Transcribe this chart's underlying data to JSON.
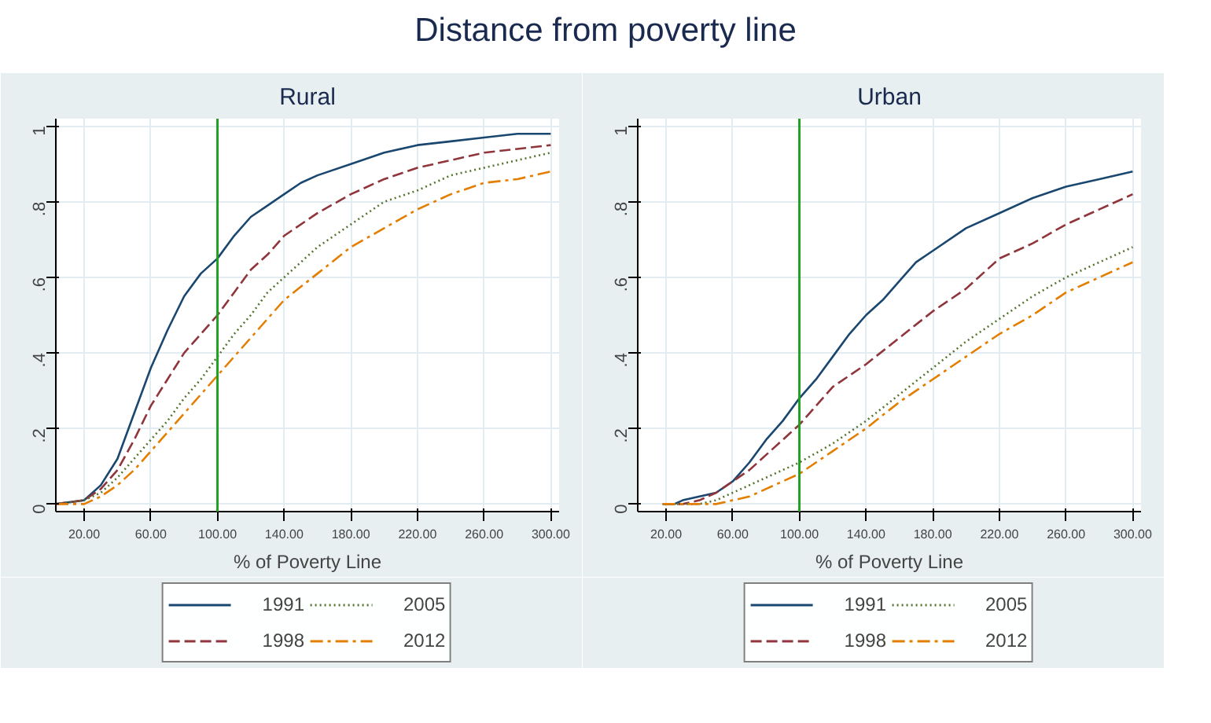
{
  "chart_data": [
    {
      "type": "line",
      "title": "Rural",
      "annotations": [
        "Distance from poverty line"
      ],
      "xlabel": "% of Poverty Line",
      "xlim": [
        3,
        305
      ],
      "ylim": [
        -0.02,
        1.02
      ],
      "xticks": [
        {
          "value": 20,
          "label": "20.00"
        },
        {
          "value": 60,
          "label": "60.00"
        },
        {
          "value": 100,
          "label": "100.00"
        },
        {
          "value": 140,
          "label": "140.00"
        },
        {
          "value": 180,
          "label": "180.00"
        },
        {
          "value": 220,
          "label": "220.00"
        },
        {
          "value": 260,
          "label": "260.00"
        },
        {
          "value": 300,
          "label": "300.00"
        }
      ],
      "yticks": [
        0,
        {
          "value": 0.2,
          "label": ".2"
        },
        {
          "value": 0.4,
          "label": ".4"
        },
        {
          "value": 0.6,
          "label": ".6"
        },
        {
          "value": 0.8,
          "label": ".8"
        },
        1
      ],
      "grid": true,
      "legend": "bottom",
      "ref_lines": [
        {
          "axis": "x",
          "value": 100,
          "color": "#22a022"
        }
      ],
      "series": [
        {
          "name": "1991",
          "color": "#1a476f",
          "line_style": "solid",
          "x": [
            3,
            20,
            30,
            40,
            50,
            60,
            70,
            80,
            90,
            100,
            110,
            120,
            130,
            140,
            150,
            160,
            180,
            200,
            220,
            240,
            260,
            280,
            300
          ],
          "values": [
            0,
            0.01,
            0.05,
            0.12,
            0.24,
            0.36,
            0.46,
            0.55,
            0.61,
            0.65,
            0.71,
            0.76,
            0.79,
            0.82,
            0.85,
            0.87,
            0.9,
            0.93,
            0.95,
            0.96,
            0.97,
            0.98,
            0.98
          ]
        },
        {
          "name": "1998",
          "color": "#90353b",
          "line_style": "dashed",
          "x": [
            3,
            20,
            30,
            40,
            50,
            60,
            70,
            80,
            90,
            100,
            110,
            120,
            130,
            140,
            160,
            180,
            200,
            220,
            240,
            260,
            280,
            300
          ],
          "values": [
            0,
            0.01,
            0.04,
            0.09,
            0.17,
            0.26,
            0.33,
            0.4,
            0.45,
            0.5,
            0.56,
            0.62,
            0.66,
            0.71,
            0.77,
            0.82,
            0.86,
            0.89,
            0.91,
            0.93,
            0.94,
            0.95
          ]
        },
        {
          "name": "2005",
          "color": "#55752f",
          "line_style": "dotted",
          "x": [
            3,
            20,
            30,
            40,
            50,
            60,
            70,
            80,
            90,
            100,
            110,
            120,
            130,
            140,
            160,
            180,
            200,
            220,
            240,
            260,
            280,
            300
          ],
          "values": [
            0,
            0.01,
            0.03,
            0.07,
            0.12,
            0.17,
            0.22,
            0.28,
            0.33,
            0.39,
            0.45,
            0.5,
            0.56,
            0.6,
            0.68,
            0.74,
            0.8,
            0.83,
            0.87,
            0.89,
            0.91,
            0.93
          ]
        },
        {
          "name": "2012",
          "color": "#e37e00",
          "line_style": "dashdot",
          "x": [
            3,
            20,
            30,
            40,
            50,
            60,
            70,
            80,
            90,
            100,
            110,
            120,
            130,
            140,
            160,
            180,
            200,
            220,
            240,
            260,
            280,
            300
          ],
          "values": [
            0,
            0,
            0.02,
            0.05,
            0.09,
            0.14,
            0.19,
            0.24,
            0.29,
            0.34,
            0.39,
            0.44,
            0.49,
            0.54,
            0.61,
            0.68,
            0.73,
            0.78,
            0.82,
            0.85,
            0.86,
            0.88
          ]
        }
      ]
    },
    {
      "type": "line",
      "title": "Urban",
      "xlabel": "% of Poverty Line",
      "xlim": [
        3,
        305
      ],
      "ylim": [
        -0.02,
        1.02
      ],
      "xticks": [
        {
          "value": 20,
          "label": "20.00"
        },
        {
          "value": 60,
          "label": "60.00"
        },
        {
          "value": 100,
          "label": "100.00"
        },
        {
          "value": 140,
          "label": "140.00"
        },
        {
          "value": 180,
          "label": "180.00"
        },
        {
          "value": 220,
          "label": "220.00"
        },
        {
          "value": 260,
          "label": "260.00"
        },
        {
          "value": 300,
          "label": "300.00"
        }
      ],
      "yticks": [
        0,
        {
          "value": 0.2,
          "label": ".2"
        },
        {
          "value": 0.4,
          "label": ".4"
        },
        {
          "value": 0.6,
          "label": ".6"
        },
        {
          "value": 0.8,
          "label": ".8"
        },
        1
      ],
      "grid": true,
      "legend": "bottom",
      "ref_lines": [
        {
          "axis": "x",
          "value": 100,
          "color": "#22a022"
        }
      ],
      "series": [
        {
          "name": "1991",
          "color": "#1a476f",
          "line_style": "solid",
          "x": [
            18,
            25,
            30,
            40,
            50,
            60,
            70,
            80,
            90,
            100,
            110,
            120,
            130,
            140,
            150,
            160,
            170,
            180,
            200,
            220,
            240,
            260,
            280,
            300
          ],
          "values": [
            0,
            0,
            0.01,
            0.02,
            0.03,
            0.06,
            0.11,
            0.17,
            0.22,
            0.28,
            0.33,
            0.39,
            0.45,
            0.5,
            0.54,
            0.59,
            0.64,
            0.67,
            0.73,
            0.77,
            0.81,
            0.84,
            0.86,
            0.88
          ]
        },
        {
          "name": "1998",
          "color": "#90353b",
          "line_style": "dashed",
          "x": [
            18,
            30,
            40,
            50,
            60,
            70,
            80,
            90,
            100,
            110,
            120,
            140,
            160,
            180,
            200,
            220,
            240,
            260,
            280,
            300
          ],
          "values": [
            0,
            0,
            0.01,
            0.03,
            0.06,
            0.09,
            0.13,
            0.17,
            0.21,
            0.26,
            0.31,
            0.37,
            0.44,
            0.51,
            0.57,
            0.65,
            0.69,
            0.74,
            0.78,
            0.82
          ]
        },
        {
          "name": "2005",
          "color": "#55752f",
          "line_style": "dotted",
          "x": [
            18,
            40,
            50,
            60,
            70,
            80,
            90,
            100,
            120,
            140,
            160,
            180,
            200,
            220,
            240,
            260,
            280,
            300
          ],
          "values": [
            0,
            0,
            0.01,
            0.03,
            0.05,
            0.07,
            0.09,
            0.11,
            0.16,
            0.22,
            0.29,
            0.36,
            0.43,
            0.49,
            0.55,
            0.6,
            0.64,
            0.68
          ]
        },
        {
          "name": "2012",
          "color": "#e37e00",
          "line_style": "dashdot",
          "x": [
            18,
            40,
            50,
            60,
            70,
            80,
            90,
            100,
            120,
            140,
            160,
            180,
            200,
            220,
            240,
            260,
            280,
            300
          ],
          "values": [
            0,
            0,
            0,
            0.01,
            0.02,
            0.04,
            0.06,
            0.08,
            0.14,
            0.2,
            0.27,
            0.33,
            0.39,
            0.45,
            0.5,
            0.56,
            0.6,
            0.64
          ]
        }
      ]
    }
  ]
}
